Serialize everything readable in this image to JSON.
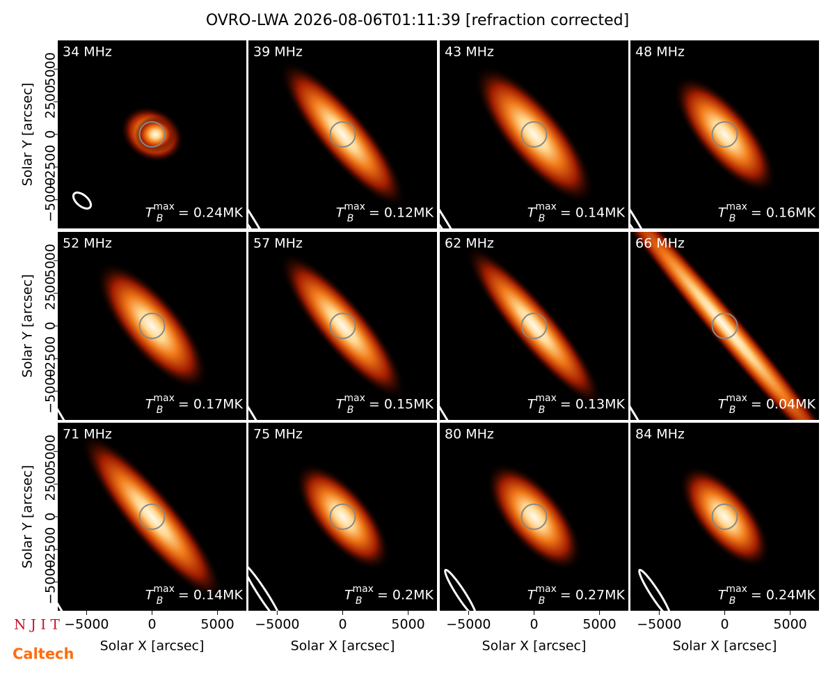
{
  "chart_data": {
    "type": "image-grid",
    "title": "OVRO-LWA 2026-08-06T01:11:39 [refraction corrected]",
    "xlabel": "Solar X [arcsec]",
    "ylabel": "Solar Y [arcsec]",
    "xlim": [
      -7200,
      7200
    ],
    "ylim": [
      -7200,
      7200
    ],
    "xticks": [
      {
        "value": -5000,
        "label": "−5000"
      },
      0,
      5000
    ],
    "yticks": [
      {
        "value": -5000,
        "label": "−5000"
      },
      {
        "value": -2500,
        "label": "−2500"
      },
      0,
      2500,
      5000
    ],
    "tb_symbol": "T",
    "tb_sub": "B",
    "tb_sup": "max",
    "panels": [
      {
        "label": "34 MHz",
        "tb": "= 0.24MK"
      },
      {
        "label": "39 MHz",
        "tb": "= 0.12MK"
      },
      {
        "label": "43 MHz",
        "tb": "= 0.14MK"
      },
      {
        "label": "48 MHz",
        "tb": "= 0.16MK"
      },
      {
        "label": "52 MHz",
        "tb": "= 0.17MK"
      },
      {
        "label": "57 MHz",
        "tb": "= 0.15MK"
      },
      {
        "label": "62 MHz",
        "tb": "= 0.13MK"
      },
      {
        "label": "66 MHz",
        "tb": "= 0.04MK"
      },
      {
        "label": "71 MHz",
        "tb": "= 0.14MK"
      },
      {
        "label": "75 MHz",
        "tb": "= 0.2MK"
      },
      {
        "label": "80 MHz",
        "tb": "= 0.27MK"
      },
      {
        "label": "84 MHz",
        "tb": "= 0.24MK"
      }
    ],
    "logos": [
      "N J I T",
      "Caltech"
    ]
  }
}
